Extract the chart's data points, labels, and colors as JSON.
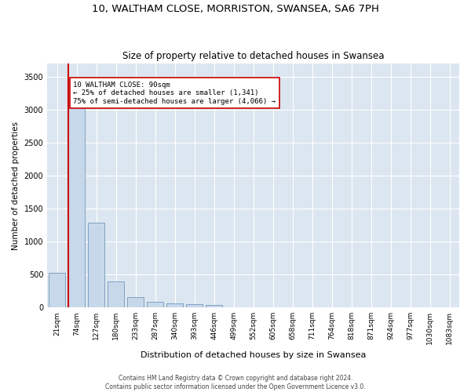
{
  "title1": "10, WALTHAM CLOSE, MORRISTON, SWANSEA, SA6 7PH",
  "title2": "Size of property relative to detached houses in Swansea",
  "xlabel": "Distribution of detached houses by size in Swansea",
  "ylabel": "Number of detached properties",
  "footnote1": "Contains HM Land Registry data © Crown copyright and database right 2024.",
  "footnote2": "Contains public sector information licensed under the Open Government Licence v3.0.",
  "categories": [
    "21sqm",
    "74sqm",
    "127sqm",
    "180sqm",
    "233sqm",
    "287sqm",
    "340sqm",
    "393sqm",
    "446sqm",
    "499sqm",
    "552sqm",
    "605sqm",
    "658sqm",
    "711sqm",
    "764sqm",
    "818sqm",
    "871sqm",
    "924sqm",
    "977sqm",
    "1030sqm",
    "1083sqm"
  ],
  "bar_heights": [
    530,
    3430,
    1290,
    400,
    160,
    90,
    60,
    50,
    40,
    0,
    0,
    0,
    0,
    0,
    0,
    0,
    0,
    0,
    0,
    0,
    0
  ],
  "bar_color": "#c8d8eb",
  "bar_edge_color": "#7098b8",
  "red_line_index": 1,
  "red_line_color": "#cc0000",
  "annotation_line1": "10 WALTHAM CLOSE: 90sqm",
  "annotation_line2": "← 25% of detached houses are smaller (1,341)",
  "annotation_line3": "75% of semi-detached houses are larger (4,066) →",
  "annotation_box_color": "#ffffff",
  "annotation_box_edge": "#cc0000",
  "ylim": [
    0,
    3700
  ],
  "yticks": [
    0,
    500,
    1000,
    1500,
    2000,
    2500,
    3000,
    3500
  ],
  "bg_color": "#dce6f0",
  "grid_color": "#ffffff",
  "title1_fontsize": 9.5,
  "title2_fontsize": 8.5,
  "xlabel_fontsize": 8,
  "ylabel_fontsize": 7.5,
  "footnote_fontsize": 5.5,
  "tick_fontsize": 6.5,
  "ytick_fontsize": 7
}
